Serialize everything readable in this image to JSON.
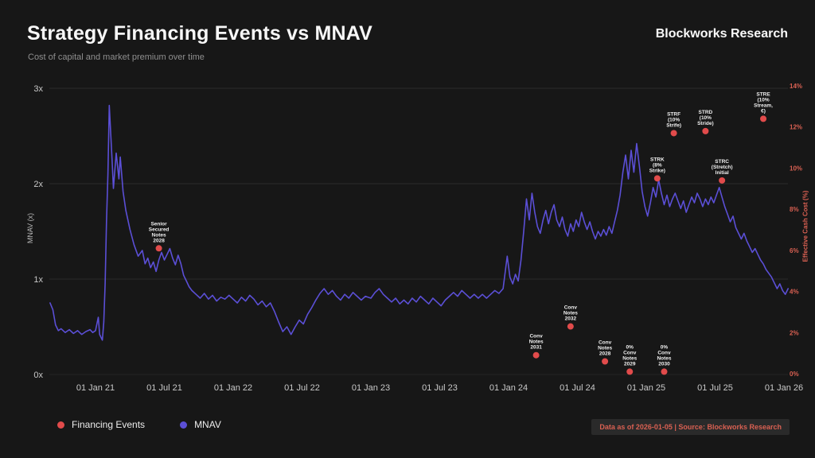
{
  "header": {
    "title": "Strategy Financing Events vs MNAV",
    "subtitle": "Cost of capital and market premium over time",
    "brand": "Blockworks Research"
  },
  "legend": {
    "financing_events": "Financing Events",
    "mnav": "MNAV"
  },
  "footer": {
    "source_note": "Data as of 2026-01-05 | Source: Blockworks Research"
  },
  "colors": {
    "background": "#171717",
    "mnav_line": "#5b4fd6",
    "event_dot": "#e14b4b",
    "right_axis_text": "#d96052",
    "grid": "#2b2b2b",
    "tick_text": "#c9c9c9",
    "event_label_text": "#f0f0f0"
  },
  "chart_data": {
    "type": "line+scatter",
    "title": "Strategy Financing Events vs MNAV",
    "subtitle": "Cost of capital and market premium over time",
    "legend_position": "bottom-left",
    "grid": "horizontal-faint",
    "y_left": {
      "label": "MNAV (x)",
      "range": [
        0,
        3
      ],
      "ticks": [
        {
          "v": 0,
          "label": "0x"
        },
        {
          "v": 1,
          "label": "1x"
        },
        {
          "v": 2,
          "label": "2x"
        },
        {
          "v": 3,
          "label": "3x"
        }
      ]
    },
    "y_right": {
      "label": "Effective Cash Cost (%)",
      "range": [
        0,
        14
      ],
      "ticks": [
        {
          "v": 0,
          "label": "0%"
        },
        {
          "v": 2,
          "label": "2%"
        },
        {
          "v": 4,
          "label": "4%"
        },
        {
          "v": 6,
          "label": "6%"
        },
        {
          "v": 8,
          "label": "8%"
        },
        {
          "v": 10,
          "label": "10%"
        },
        {
          "v": 12,
          "label": "12%"
        },
        {
          "v": 14,
          "label": "14%"
        }
      ]
    },
    "x_ticks": [
      {
        "t": 2021.0,
        "label": "01 Jan 21"
      },
      {
        "t": 2021.5,
        "label": "01 Jul 21"
      },
      {
        "t": 2022.0,
        "label": "01 Jan 22"
      },
      {
        "t": 2022.5,
        "label": "01 Jul 22"
      },
      {
        "t": 2023.0,
        "label": "01 Jan 23"
      },
      {
        "t": 2023.5,
        "label": "01 Jul 23"
      },
      {
        "t": 2024.0,
        "label": "01 Jan 24"
      },
      {
        "t": 2024.5,
        "label": "01 Jul 24"
      },
      {
        "t": 2025.0,
        "label": "01 Jan 25"
      },
      {
        "t": 2025.5,
        "label": "01 Jul 25"
      },
      {
        "t": 2026.0,
        "label": "01 Jan 26"
      }
    ],
    "x_range": [
      2020.67,
      2026.05
    ],
    "mnav_series": [
      [
        2020.67,
        0.75
      ],
      [
        2020.69,
        0.68
      ],
      [
        2020.71,
        0.52
      ],
      [
        2020.73,
        0.46
      ],
      [
        2020.75,
        0.48
      ],
      [
        2020.78,
        0.44
      ],
      [
        2020.81,
        0.47
      ],
      [
        2020.84,
        0.43
      ],
      [
        2020.87,
        0.46
      ],
      [
        2020.9,
        0.42
      ],
      [
        2020.93,
        0.45
      ],
      [
        2020.96,
        0.47
      ],
      [
        2020.98,
        0.44
      ],
      [
        2021.0,
        0.46
      ],
      [
        2021.02,
        0.6
      ],
      [
        2021.03,
        0.42
      ],
      [
        2021.05,
        0.36
      ],
      [
        2021.06,
        0.55
      ],
      [
        2021.07,
        0.95
      ],
      [
        2021.08,
        1.6
      ],
      [
        2021.09,
        2.1
      ],
      [
        2021.1,
        2.82
      ],
      [
        2021.12,
        2.25
      ],
      [
        2021.13,
        1.95
      ],
      [
        2021.15,
        2.32
      ],
      [
        2021.17,
        2.05
      ],
      [
        2021.18,
        2.28
      ],
      [
        2021.2,
        1.92
      ],
      [
        2021.22,
        1.72
      ],
      [
        2021.25,
        1.52
      ],
      [
        2021.28,
        1.36
      ],
      [
        2021.31,
        1.24
      ],
      [
        2021.34,
        1.3
      ],
      [
        2021.36,
        1.16
      ],
      [
        2021.38,
        1.22
      ],
      [
        2021.4,
        1.12
      ],
      [
        2021.42,
        1.18
      ],
      [
        2021.44,
        1.08
      ],
      [
        2021.46,
        1.2
      ],
      [
        2021.48,
        1.28
      ],
      [
        2021.5,
        1.2
      ],
      [
        2021.52,
        1.26
      ],
      [
        2021.54,
        1.32
      ],
      [
        2021.56,
        1.22
      ],
      [
        2021.58,
        1.15
      ],
      [
        2021.6,
        1.25
      ],
      [
        2021.62,
        1.16
      ],
      [
        2021.64,
        1.04
      ],
      [
        2021.66,
        0.98
      ],
      [
        2021.68,
        0.92
      ],
      [
        2021.7,
        0.88
      ],
      [
        2021.73,
        0.84
      ],
      [
        2021.76,
        0.8
      ],
      [
        2021.79,
        0.85
      ],
      [
        2021.82,
        0.79
      ],
      [
        2021.85,
        0.83
      ],
      [
        2021.88,
        0.77
      ],
      [
        2021.91,
        0.81
      ],
      [
        2021.94,
        0.79
      ],
      [
        2021.97,
        0.83
      ],
      [
        2022.0,
        0.79
      ],
      [
        2022.03,
        0.75
      ],
      [
        2022.06,
        0.81
      ],
      [
        2022.09,
        0.77
      ],
      [
        2022.12,
        0.83
      ],
      [
        2022.15,
        0.79
      ],
      [
        2022.18,
        0.73
      ],
      [
        2022.21,
        0.77
      ],
      [
        2022.24,
        0.71
      ],
      [
        2022.27,
        0.75
      ],
      [
        2022.3,
        0.66
      ],
      [
        2022.33,
        0.55
      ],
      [
        2022.36,
        0.45
      ],
      [
        2022.39,
        0.5
      ],
      [
        2022.42,
        0.42
      ],
      [
        2022.45,
        0.5
      ],
      [
        2022.48,
        0.57
      ],
      [
        2022.51,
        0.53
      ],
      [
        2022.54,
        0.63
      ],
      [
        2022.57,
        0.7
      ],
      [
        2022.6,
        0.78
      ],
      [
        2022.63,
        0.85
      ],
      [
        2022.66,
        0.9
      ],
      [
        2022.69,
        0.84
      ],
      [
        2022.72,
        0.88
      ],
      [
        2022.75,
        0.82
      ],
      [
        2022.78,
        0.78
      ],
      [
        2022.81,
        0.84
      ],
      [
        2022.84,
        0.8
      ],
      [
        2022.87,
        0.86
      ],
      [
        2022.9,
        0.82
      ],
      [
        2022.93,
        0.78
      ],
      [
        2022.96,
        0.82
      ],
      [
        2023.0,
        0.8
      ],
      [
        2023.03,
        0.86
      ],
      [
        2023.06,
        0.9
      ],
      [
        2023.09,
        0.84
      ],
      [
        2023.12,
        0.8
      ],
      [
        2023.15,
        0.76
      ],
      [
        2023.18,
        0.8
      ],
      [
        2023.21,
        0.74
      ],
      [
        2023.24,
        0.78
      ],
      [
        2023.27,
        0.74
      ],
      [
        2023.3,
        0.8
      ],
      [
        2023.33,
        0.76
      ],
      [
        2023.36,
        0.82
      ],
      [
        2023.39,
        0.78
      ],
      [
        2023.42,
        0.74
      ],
      [
        2023.45,
        0.8
      ],
      [
        2023.48,
        0.76
      ],
      [
        2023.51,
        0.72
      ],
      [
        2023.54,
        0.78
      ],
      [
        2023.57,
        0.82
      ],
      [
        2023.6,
        0.86
      ],
      [
        2023.63,
        0.82
      ],
      [
        2023.66,
        0.88
      ],
      [
        2023.69,
        0.84
      ],
      [
        2023.72,
        0.8
      ],
      [
        2023.75,
        0.84
      ],
      [
        2023.78,
        0.8
      ],
      [
        2023.81,
        0.84
      ],
      [
        2023.84,
        0.8
      ],
      [
        2023.87,
        0.84
      ],
      [
        2023.9,
        0.88
      ],
      [
        2023.93,
        0.85
      ],
      [
        2023.96,
        0.9
      ],
      [
        2023.99,
        1.24
      ],
      [
        2024.01,
        1.02
      ],
      [
        2024.03,
        0.95
      ],
      [
        2024.05,
        1.05
      ],
      [
        2024.07,
        0.98
      ],
      [
        2024.09,
        1.2
      ],
      [
        2024.11,
        1.5
      ],
      [
        2024.13,
        1.84
      ],
      [
        2024.15,
        1.62
      ],
      [
        2024.17,
        1.9
      ],
      [
        2024.19,
        1.7
      ],
      [
        2024.21,
        1.55
      ],
      [
        2024.23,
        1.48
      ],
      [
        2024.25,
        1.62
      ],
      [
        2024.27,
        1.72
      ],
      [
        2024.29,
        1.58
      ],
      [
        2024.31,
        1.7
      ],
      [
        2024.33,
        1.78
      ],
      [
        2024.35,
        1.62
      ],
      [
        2024.37,
        1.55
      ],
      [
        2024.39,
        1.65
      ],
      [
        2024.41,
        1.52
      ],
      [
        2024.43,
        1.45
      ],
      [
        2024.45,
        1.58
      ],
      [
        2024.47,
        1.5
      ],
      [
        2024.49,
        1.62
      ],
      [
        2024.51,
        1.55
      ],
      [
        2024.53,
        1.7
      ],
      [
        2024.55,
        1.6
      ],
      [
        2024.57,
        1.52
      ],
      [
        2024.59,
        1.6
      ],
      [
        2024.61,
        1.5
      ],
      [
        2024.63,
        1.42
      ],
      [
        2024.65,
        1.5
      ],
      [
        2024.67,
        1.45
      ],
      [
        2024.69,
        1.52
      ],
      [
        2024.71,
        1.46
      ],
      [
        2024.73,
        1.55
      ],
      [
        2024.75,
        1.48
      ],
      [
        2024.77,
        1.6
      ],
      [
        2024.79,
        1.72
      ],
      [
        2024.81,
        1.88
      ],
      [
        2024.83,
        2.12
      ],
      [
        2024.85,
        2.3
      ],
      [
        2024.87,
        2.05
      ],
      [
        2024.89,
        2.35
      ],
      [
        2024.91,
        2.12
      ],
      [
        2024.93,
        2.42
      ],
      [
        2024.95,
        2.18
      ],
      [
        2024.97,
        1.92
      ],
      [
        2024.99,
        1.76
      ],
      [
        2025.01,
        1.66
      ],
      [
        2025.03,
        1.8
      ],
      [
        2025.05,
        1.96
      ],
      [
        2025.07,
        1.86
      ],
      [
        2025.09,
        2.04
      ],
      [
        2025.11,
        1.9
      ],
      [
        2025.13,
        1.78
      ],
      [
        2025.15,
        1.88
      ],
      [
        2025.17,
        1.76
      ],
      [
        2025.19,
        1.84
      ],
      [
        2025.21,
        1.9
      ],
      [
        2025.23,
        1.82
      ],
      [
        2025.25,
        1.74
      ],
      [
        2025.27,
        1.82
      ],
      [
        2025.29,
        1.7
      ],
      [
        2025.31,
        1.78
      ],
      [
        2025.33,
        1.86
      ],
      [
        2025.35,
        1.8
      ],
      [
        2025.37,
        1.9
      ],
      [
        2025.39,
        1.84
      ],
      [
        2025.41,
        1.76
      ],
      [
        2025.43,
        1.84
      ],
      [
        2025.45,
        1.78
      ],
      [
        2025.47,
        1.86
      ],
      [
        2025.49,
        1.8
      ],
      [
        2025.51,
        1.88
      ],
      [
        2025.53,
        1.96
      ],
      [
        2025.55,
        1.86
      ],
      [
        2025.57,
        1.76
      ],
      [
        2025.59,
        1.68
      ],
      [
        2025.61,
        1.6
      ],
      [
        2025.63,
        1.66
      ],
      [
        2025.65,
        1.54
      ],
      [
        2025.67,
        1.48
      ],
      [
        2025.69,
        1.42
      ],
      [
        2025.71,
        1.48
      ],
      [
        2025.73,
        1.4
      ],
      [
        2025.75,
        1.34
      ],
      [
        2025.77,
        1.28
      ],
      [
        2025.79,
        1.32
      ],
      [
        2025.81,
        1.26
      ],
      [
        2025.83,
        1.2
      ],
      [
        2025.85,
        1.16
      ],
      [
        2025.87,
        1.1
      ],
      [
        2025.89,
        1.06
      ],
      [
        2025.91,
        1.02
      ],
      [
        2025.93,
        0.96
      ],
      [
        2025.95,
        0.9
      ],
      [
        2025.97,
        0.95
      ],
      [
        2025.99,
        0.88
      ],
      [
        2026.01,
        0.84
      ],
      [
        2026.03,
        0.9
      ]
    ],
    "events": [
      {
        "t": 2021.46,
        "cost_pct": 6.1,
        "label": "Senior Secured Notes 2028",
        "label_lines": [
          "Senior",
          "Secured",
          "Notes",
          "2028"
        ]
      },
      {
        "t": 2024.2,
        "cost_pct": 0.9,
        "label": "Conv Notes 2031",
        "label_lines": [
          "Conv",
          "Notes",
          "2031"
        ]
      },
      {
        "t": 2024.45,
        "cost_pct": 2.3,
        "label": "Conv Notes 2032",
        "label_lines": [
          "Conv",
          "Notes",
          "2032"
        ]
      },
      {
        "t": 2024.7,
        "cost_pct": 0.6,
        "label": "Conv Notes 2028",
        "label_lines": [
          "Conv",
          "Notes",
          "2028"
        ]
      },
      {
        "t": 2024.88,
        "cost_pct": 0.1,
        "label": "0% Conv Notes 2029",
        "label_lines": [
          "0%",
          "Conv",
          "Notes",
          "2029"
        ]
      },
      {
        "t": 2025.13,
        "cost_pct": 0.1,
        "label": "0% Conv Notes 2030",
        "label_lines": [
          "0%",
          "Conv",
          "Notes",
          "2030"
        ]
      },
      {
        "t": 2025.08,
        "cost_pct": 9.5,
        "label": "STRK (8% Strike)",
        "label_lines": [
          "STRK",
          "(8%",
          "Strike)"
        ]
      },
      {
        "t": 2025.2,
        "cost_pct": 11.7,
        "label": "STRF (10% Strife)",
        "label_lines": [
          "STRF",
          "(10%",
          "Strife)"
        ]
      },
      {
        "t": 2025.43,
        "cost_pct": 11.8,
        "label": "STRD (10% Stride)",
        "label_lines": [
          "STRD",
          "(10%",
          "Stride)"
        ]
      },
      {
        "t": 2025.55,
        "cost_pct": 9.4,
        "label": "STRC (Stretch) Initial",
        "label_lines": [
          "STRC",
          "(Stretch)",
          "Initial"
        ]
      },
      {
        "t": 2025.85,
        "cost_pct": 12.4,
        "label": "STRE (10% Stream, €)",
        "label_lines": [
          "STRE",
          "(10%",
          "Stream,",
          "€)"
        ]
      }
    ]
  }
}
